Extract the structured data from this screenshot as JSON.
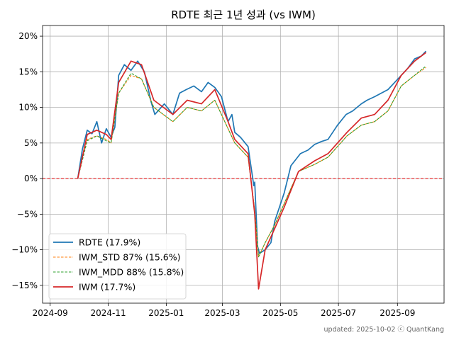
{
  "chart_data": {
    "type": "line",
    "title": "RDTE 최근 1년 성과 (vs IWM)",
    "xlabel": "",
    "ylabel": "",
    "grid": true,
    "legend_position": "lower-left",
    "x_ticks": [
      "2024-09",
      "2024-11",
      "2025-01",
      "2025-03",
      "2025-05",
      "2025-07",
      "2025-09"
    ],
    "y_ticks": [
      -15,
      -10,
      -5,
      0,
      5,
      10,
      15,
      20
    ],
    "y_tick_labels": [
      "−15%",
      "−10%",
      "−5%",
      "0%",
      "5%",
      "10%",
      "15%",
      "20%"
    ],
    "xlim": [
      "2024-08-24",
      "2025-10-20"
    ],
    "ylim": [
      -17.5,
      21.5
    ],
    "reference_line": {
      "y": 0,
      "color": "#e41a1c",
      "style": "dashed"
    },
    "footer": "updated: 2025-10-02 ⓒ QuantKang",
    "series": [
      {
        "name": "RDTE (17.9%)",
        "color": "#1f77b4",
        "style": "solid",
        "x": [
          "2024-09-30",
          "2024-10-05",
          "2024-10-10",
          "2024-10-15",
          "2024-10-20",
          "2024-10-25",
          "2024-10-30",
          "2024-11-04",
          "2024-11-08",
          "2024-11-12",
          "2024-11-18",
          "2024-11-25",
          "2024-12-02",
          "2024-12-09",
          "2024-12-16",
          "2024-12-20",
          "2024-12-30",
          "2025-01-08",
          "2025-01-15",
          "2025-01-22",
          "2025-01-30",
          "2025-02-07",
          "2025-02-14",
          "2025-02-21",
          "2025-02-28",
          "2025-03-07",
          "2025-03-11",
          "2025-03-14",
          "2025-03-20",
          "2025-03-28",
          "2025-04-03",
          "2025-04-04",
          "2025-04-07",
          "2025-04-09",
          "2025-04-15",
          "2025-04-21",
          "2025-04-25",
          "2025-05-05",
          "2025-05-12",
          "2025-05-22",
          "2025-05-30",
          "2025-06-06",
          "2025-06-13",
          "2025-06-20",
          "2025-06-30",
          "2025-07-09",
          "2025-07-16",
          "2025-07-25",
          "2025-07-31",
          "2025-08-08",
          "2025-08-15",
          "2025-08-22",
          "2025-08-29",
          "2025-09-05",
          "2025-09-12",
          "2025-09-19",
          "2025-09-26",
          "2025-10-01"
        ],
        "values": [
          0.0,
          4.2,
          6.8,
          6.3,
          8.0,
          5.0,
          7.0,
          5.8,
          7.2,
          14.5,
          16.0,
          15.2,
          16.5,
          15.0,
          10.8,
          9.0,
          10.5,
          9.0,
          12.0,
          12.5,
          13.0,
          12.2,
          13.5,
          12.8,
          11.5,
          8.0,
          9.0,
          6.5,
          5.8,
          4.5,
          -1.0,
          -0.5,
          -9.5,
          -10.5,
          -10.0,
          -9.0,
          -6.0,
          -2.0,
          1.8,
          3.5,
          4.0,
          4.8,
          5.2,
          5.5,
          7.5,
          9.0,
          9.5,
          10.5,
          11.0,
          11.5,
          12.0,
          12.5,
          13.5,
          14.5,
          15.5,
          16.8,
          17.2,
          17.9
        ]
      },
      {
        "name": "IWM_STD 87% (15.6%)",
        "color": "#ff7f0e",
        "style": "dashed",
        "x": [
          "2024-09-30",
          "2024-10-10",
          "2024-10-20",
          "2024-10-30",
          "2024-11-04",
          "2024-11-12",
          "2024-11-25",
          "2024-12-06",
          "2024-12-19",
          "2025-01-08",
          "2025-01-23",
          "2025-02-07",
          "2025-02-21",
          "2025-03-07",
          "2025-03-14",
          "2025-03-28",
          "2025-04-04",
          "2025-04-08",
          "2025-04-15",
          "2025-04-25",
          "2025-05-05",
          "2025-05-20",
          "2025-06-06",
          "2025-06-20",
          "2025-07-10",
          "2025-07-25",
          "2025-08-08",
          "2025-08-22",
          "2025-09-05",
          "2025-09-19",
          "2025-10-01"
        ],
        "values": [
          0.0,
          5.5,
          6.0,
          5.5,
          5.0,
          12.0,
          14.5,
          14.0,
          10.0,
          8.0,
          10.0,
          9.5,
          11.0,
          7.0,
          5.0,
          3.0,
          -4.5,
          -11.0,
          -9.0,
          -6.5,
          -3.5,
          1.0,
          2.0,
          3.0,
          6.0,
          7.5,
          8.0,
          9.5,
          13.0,
          14.5,
          15.6
        ]
      },
      {
        "name": "IWM_MDD 88% (15.8%)",
        "color": "#2ca02c",
        "style": "dashed",
        "x": [
          "2024-09-30",
          "2024-10-10",
          "2024-10-20",
          "2024-10-30",
          "2024-11-04",
          "2024-11-12",
          "2024-11-25",
          "2024-12-06",
          "2024-12-19",
          "2025-01-08",
          "2025-01-23",
          "2025-02-07",
          "2025-02-21",
          "2025-03-07",
          "2025-03-14",
          "2025-03-28",
          "2025-04-04",
          "2025-04-08",
          "2025-04-15",
          "2025-04-25",
          "2025-05-05",
          "2025-05-20",
          "2025-06-06",
          "2025-06-20",
          "2025-07-10",
          "2025-07-25",
          "2025-08-08",
          "2025-08-22",
          "2025-09-05",
          "2025-09-19",
          "2025-10-01"
        ],
        "values": [
          0.0,
          5.3,
          6.0,
          5.3,
          5.0,
          12.0,
          14.8,
          14.0,
          10.0,
          8.0,
          10.0,
          9.5,
          11.0,
          7.0,
          5.0,
          3.0,
          -4.5,
          -11.0,
          -9.0,
          -6.5,
          -3.5,
          1.0,
          2.0,
          3.0,
          6.0,
          7.5,
          8.0,
          9.5,
          13.0,
          14.5,
          15.8
        ]
      },
      {
        "name": "IWM (17.7%)",
        "color": "#d62728",
        "style": "solid",
        "x": [
          "2024-09-30",
          "2024-10-10",
          "2024-10-20",
          "2024-10-30",
          "2024-11-04",
          "2024-11-12",
          "2024-11-25",
          "2024-12-06",
          "2024-12-19",
          "2025-01-08",
          "2025-01-23",
          "2025-02-07",
          "2025-02-21",
          "2025-03-07",
          "2025-03-14",
          "2025-03-28",
          "2025-04-04",
          "2025-04-08",
          "2025-04-15",
          "2025-04-25",
          "2025-05-05",
          "2025-05-20",
          "2025-06-06",
          "2025-06-20",
          "2025-07-10",
          "2025-07-25",
          "2025-08-08",
          "2025-08-22",
          "2025-09-05",
          "2025-09-19",
          "2025-10-01"
        ],
        "values": [
          0.0,
          6.2,
          6.8,
          6.2,
          5.5,
          13.5,
          16.5,
          16.0,
          11.0,
          9.0,
          11.0,
          10.5,
          12.5,
          8.0,
          5.5,
          3.5,
          -5.0,
          -15.5,
          -10.0,
          -7.0,
          -4.0,
          1.0,
          2.5,
          3.5,
          6.5,
          8.5,
          9.0,
          11.0,
          14.5,
          16.5,
          17.7
        ]
      }
    ]
  }
}
